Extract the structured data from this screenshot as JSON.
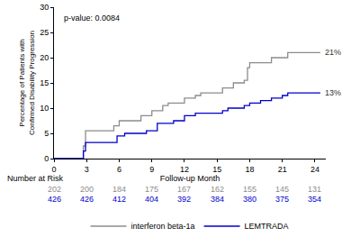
{
  "chart_data": {
    "type": "step",
    "x_label": "Follow-up Month",
    "y_label": "Percentage of Patients with Confirmed Disability Progression",
    "annotations": [
      "p-value: 0.0084"
    ],
    "xlim": [
      0,
      25
    ],
    "xticks": [
      0,
      3,
      6,
      9,
      12,
      15,
      18,
      21,
      24
    ],
    "ylim": [
      0,
      30
    ],
    "yticks": [
      0,
      5,
      10,
      15,
      20,
      25,
      30
    ],
    "grid": false,
    "legend": "bottom",
    "risk_table": {
      "title": "Number at Risk",
      "x": [
        0,
        3,
        6,
        9,
        12,
        15,
        18,
        21,
        24
      ]
    },
    "series": [
      {
        "name": "interferon beta-1a",
        "color": "#8c8c8c",
        "x": [
          0,
          2.7,
          2.9,
          5.5,
          6,
          8,
          9,
          10,
          10.5,
          12,
          13,
          13.5,
          15.5,
          16.5,
          17.5,
          17.8,
          18,
          20,
          21.5,
          24.5
        ],
        "values": [
          0,
          2.5,
          5.5,
          6.5,
          7.5,
          8.5,
          9.5,
          10.5,
          11,
          12,
          12.5,
          13,
          14,
          15,
          15.5,
          18,
          19,
          20,
          21,
          21
        ],
        "end_label": "21%",
        "at_risk": [
          202,
          200,
          184,
          175,
          167,
          162,
          155,
          145,
          131
        ]
      },
      {
        "name": "LEMTRADA",
        "color": "#0000cc",
        "x": [
          0,
          2.7,
          2.9,
          5.8,
          6.5,
          8.5,
          9.5,
          11,
          12,
          13,
          15.5,
          16,
          17.5,
          18,
          19,
          20,
          21,
          21.5,
          24.5
        ],
        "values": [
          0,
          1.5,
          3.2,
          4.5,
          5,
          5.5,
          7,
          7.5,
          8.5,
          9,
          9.5,
          10,
          10.5,
          11,
          11.5,
          12,
          12.5,
          13,
          13
        ],
        "end_label": "13%",
        "at_risk": [
          426,
          426,
          412,
          404,
          392,
          384,
          380,
          375,
          354
        ]
      }
    ]
  }
}
